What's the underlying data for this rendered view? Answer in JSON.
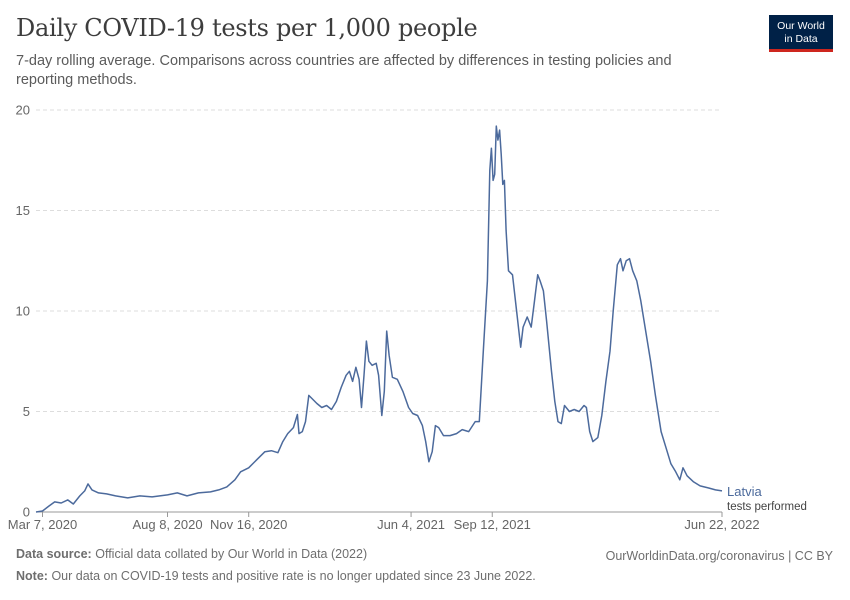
{
  "header": {
    "title": "Daily COVID-19 tests per 1,000 people",
    "subtitle": "7-day rolling average. Comparisons across countries are affected by differences in testing policies and reporting methods."
  },
  "logo": {
    "line1": "Our World",
    "line2": "in Data",
    "bg_color": "#002147",
    "accent_color": "#ce261e"
  },
  "footer": {
    "source_label": "Data source:",
    "source_text": "Official data collated by Our World in Data (2022)",
    "url_text": "OurWorldinData.org/coronavirus | CC BY",
    "note_label": "Note:",
    "note_text": "Our data on COVID-19 tests and positive rate is no longer updated since 23 June 2022."
  },
  "chart_data": {
    "type": "line",
    "title": "Daily COVID-19 tests per 1,000 people",
    "ylim": [
      0,
      20
    ],
    "y_ticks": [
      0,
      5,
      10,
      15,
      20
    ],
    "x_range": [
      "2020-02-28",
      "2022-06-22"
    ],
    "x_ticks": [
      {
        "date": "2020-03-07",
        "label": "Mar 7, 2020"
      },
      {
        "date": "2020-08-08",
        "label": "Aug 8, 2020"
      },
      {
        "date": "2020-11-16",
        "label": "Nov 16, 2020"
      },
      {
        "date": "2021-06-04",
        "label": "Jun 4, 2021"
      },
      {
        "date": "2021-09-12",
        "label": "Sep 12, 2021"
      },
      {
        "date": "2022-06-22",
        "label": "Jun 22, 2022"
      }
    ],
    "grid": "horizontal dashed",
    "series": [
      {
        "name": "Latvia",
        "sublabel": "tests performed",
        "color": "#4c6a9c",
        "points": [
          [
            "2020-02-28",
            0.0
          ],
          [
            "2020-03-07",
            0.05
          ],
          [
            "2020-03-15",
            0.3
          ],
          [
            "2020-03-22",
            0.5
          ],
          [
            "2020-03-30",
            0.45
          ],
          [
            "2020-04-07",
            0.6
          ],
          [
            "2020-04-14",
            0.4
          ],
          [
            "2020-04-22",
            0.8
          ],
          [
            "2020-04-28",
            1.05
          ],
          [
            "2020-05-02",
            1.4
          ],
          [
            "2020-05-07",
            1.1
          ],
          [
            "2020-05-15",
            0.95
          ],
          [
            "2020-05-25",
            0.9
          ],
          [
            "2020-06-05",
            0.8
          ],
          [
            "2020-06-20",
            0.7
          ],
          [
            "2020-07-05",
            0.8
          ],
          [
            "2020-07-20",
            0.75
          ],
          [
            "2020-08-08",
            0.85
          ],
          [
            "2020-08-20",
            0.95
          ],
          [
            "2020-09-01",
            0.8
          ],
          [
            "2020-09-15",
            0.95
          ],
          [
            "2020-09-30",
            1.0
          ],
          [
            "2020-10-10",
            1.1
          ],
          [
            "2020-10-20",
            1.25
          ],
          [
            "2020-10-30",
            1.6
          ],
          [
            "2020-11-06",
            2.0
          ],
          [
            "2020-11-16",
            2.2
          ],
          [
            "2020-11-26",
            2.6
          ],
          [
            "2020-12-06",
            3.0
          ],
          [
            "2020-12-14",
            3.05
          ],
          [
            "2020-12-22",
            2.95
          ],
          [
            "2020-12-28",
            3.5
          ],
          [
            "2021-01-03",
            3.9
          ],
          [
            "2021-01-10",
            4.2
          ],
          [
            "2021-01-15",
            4.85
          ],
          [
            "2021-01-17",
            3.9
          ],
          [
            "2021-01-21",
            4.0
          ],
          [
            "2021-01-25",
            4.5
          ],
          [
            "2021-01-29",
            5.8
          ],
          [
            "2021-02-03",
            5.6
          ],
          [
            "2021-02-08",
            5.4
          ],
          [
            "2021-02-14",
            5.2
          ],
          [
            "2021-02-20",
            5.3
          ],
          [
            "2021-02-26",
            5.1
          ],
          [
            "2021-03-04",
            5.5
          ],
          [
            "2021-03-10",
            6.2
          ],
          [
            "2021-03-16",
            6.8
          ],
          [
            "2021-03-20",
            7.0
          ],
          [
            "2021-03-24",
            6.5
          ],
          [
            "2021-03-28",
            7.2
          ],
          [
            "2021-04-01",
            6.6
          ],
          [
            "2021-04-04",
            5.2
          ],
          [
            "2021-04-07",
            6.8
          ],
          [
            "2021-04-10",
            8.5
          ],
          [
            "2021-04-13",
            7.5
          ],
          [
            "2021-04-17",
            7.3
          ],
          [
            "2021-04-22",
            7.4
          ],
          [
            "2021-04-25",
            6.8
          ],
          [
            "2021-04-29",
            4.8
          ],
          [
            "2021-05-02",
            6.0
          ],
          [
            "2021-05-05",
            9.0
          ],
          [
            "2021-05-08",
            7.8
          ],
          [
            "2021-05-12",
            6.7
          ],
          [
            "2021-05-18",
            6.6
          ],
          [
            "2021-05-25",
            6.0
          ],
          [
            "2021-06-01",
            5.2
          ],
          [
            "2021-06-06",
            4.9
          ],
          [
            "2021-06-12",
            4.8
          ],
          [
            "2021-06-18",
            4.3
          ],
          [
            "2021-06-22",
            3.5
          ],
          [
            "2021-06-26",
            2.5
          ],
          [
            "2021-06-30",
            3.0
          ],
          [
            "2021-07-04",
            4.3
          ],
          [
            "2021-07-08",
            4.2
          ],
          [
            "2021-07-14",
            3.8
          ],
          [
            "2021-07-22",
            3.8
          ],
          [
            "2021-07-30",
            3.9
          ],
          [
            "2021-08-06",
            4.1
          ],
          [
            "2021-08-14",
            4.0
          ],
          [
            "2021-08-22",
            4.5
          ],
          [
            "2021-08-27",
            4.5
          ],
          [
            "2021-09-01",
            8.0
          ],
          [
            "2021-09-06",
            11.5
          ],
          [
            "2021-09-09",
            17.0
          ],
          [
            "2021-09-11",
            18.1
          ],
          [
            "2021-09-13",
            16.5
          ],
          [
            "2021-09-15",
            16.8
          ],
          [
            "2021-09-17",
            19.2
          ],
          [
            "2021-09-19",
            18.5
          ],
          [
            "2021-09-21",
            19.0
          ],
          [
            "2021-09-23",
            17.8
          ],
          [
            "2021-09-25",
            16.3
          ],
          [
            "2021-09-27",
            16.5
          ],
          [
            "2021-09-29",
            14.0
          ],
          [
            "2021-10-02",
            12.0
          ],
          [
            "2021-10-07",
            11.8
          ],
          [
            "2021-10-12",
            10.0
          ],
          [
            "2021-10-17",
            8.2
          ],
          [
            "2021-10-20",
            9.2
          ],
          [
            "2021-10-25",
            9.7
          ],
          [
            "2021-10-30",
            9.2
          ],
          [
            "2021-11-03",
            10.5
          ],
          [
            "2021-11-07",
            11.8
          ],
          [
            "2021-11-10",
            11.5
          ],
          [
            "2021-11-14",
            11.0
          ],
          [
            "2021-11-18",
            9.5
          ],
          [
            "2021-11-24",
            7.0
          ],
          [
            "2021-11-28",
            5.5
          ],
          [
            "2021-12-02",
            4.5
          ],
          [
            "2021-12-06",
            4.4
          ],
          [
            "2021-12-10",
            5.3
          ],
          [
            "2021-12-16",
            5.0
          ],
          [
            "2021-12-22",
            5.1
          ],
          [
            "2021-12-28",
            5.0
          ],
          [
            "2022-01-03",
            5.3
          ],
          [
            "2022-01-06",
            5.2
          ],
          [
            "2022-01-10",
            4.0
          ],
          [
            "2022-01-14",
            3.5
          ],
          [
            "2022-01-20",
            3.7
          ],
          [
            "2022-01-25",
            4.8
          ],
          [
            "2022-01-30",
            6.5
          ],
          [
            "2022-02-04",
            8.0
          ],
          [
            "2022-02-08",
            10.0
          ],
          [
            "2022-02-13",
            12.3
          ],
          [
            "2022-02-17",
            12.6
          ],
          [
            "2022-02-20",
            12.0
          ],
          [
            "2022-02-24",
            12.5
          ],
          [
            "2022-02-28",
            12.6
          ],
          [
            "2022-03-04",
            12.0
          ],
          [
            "2022-03-09",
            11.5
          ],
          [
            "2022-03-14",
            10.5
          ],
          [
            "2022-03-20",
            9.0
          ],
          [
            "2022-03-26",
            7.5
          ],
          [
            "2022-04-01",
            5.8
          ],
          [
            "2022-04-08",
            4.0
          ],
          [
            "2022-04-14",
            3.2
          ],
          [
            "2022-04-20",
            2.4
          ],
          [
            "2022-04-26",
            2.0
          ],
          [
            "2022-05-01",
            1.6
          ],
          [
            "2022-05-05",
            2.2
          ],
          [
            "2022-05-10",
            1.8
          ],
          [
            "2022-05-18",
            1.5
          ],
          [
            "2022-05-26",
            1.3
          ],
          [
            "2022-06-05",
            1.2
          ],
          [
            "2022-06-14",
            1.1
          ],
          [
            "2022-06-22",
            1.05
          ]
        ]
      }
    ]
  }
}
